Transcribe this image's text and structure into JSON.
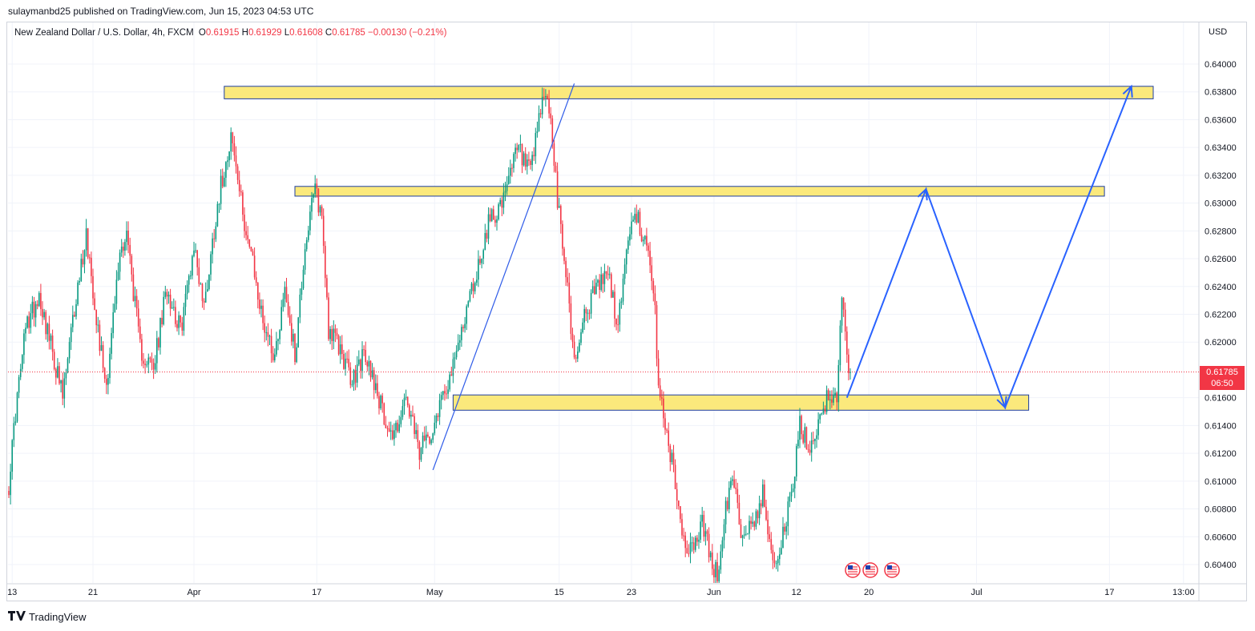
{
  "header": {
    "publish_line": "sulaymanbd25 published on TradingView.com, Jun 15, 2023 04:53 UTC"
  },
  "legend": {
    "symbol": "New Zealand Dollar / U.S. Dollar, 4h, FXCM",
    "open_label": "O",
    "open": "0.61915",
    "high_label": "H",
    "high": "0.61929",
    "low_label": "L",
    "low": "0.61608",
    "close_label": "C",
    "close": "0.61785",
    "change": "−0.00130 (−0.21%)"
  },
  "price_axis": {
    "currency": "USD"
  },
  "last_price": {
    "value": "0.61785",
    "countdown": "06:50"
  },
  "footer": {
    "logo_text": "TradingView"
  },
  "colors": {
    "up": "#089981",
    "down": "#f23645",
    "zone_fill": "#fbe97c",
    "zone_border": "#1f3ea0",
    "projection": "#2962ff",
    "trendline": "#2e5be8",
    "grid": "#f0f3fa"
  },
  "chart_data": {
    "type": "candlestick",
    "title": "New Zealand Dollar / U.S. Dollar, 4h, FXCM",
    "ylabel": "USD",
    "ylim": [
      0.6028,
      0.6415
    ],
    "y_ticks": [
      "0.64000",
      "0.63800",
      "0.63600",
      "0.63400",
      "0.63200",
      "0.63000",
      "0.62800",
      "0.62600",
      "0.62400",
      "0.62200",
      "0.62000",
      "0.61600",
      "0.61400",
      "0.61200",
      "0.61000",
      "0.60800",
      "0.60600",
      "0.60400"
    ],
    "x_ticks": [
      {
        "label": "13",
        "i": 2
      },
      {
        "label": "21",
        "i": 50
      },
      {
        "label": "Apr",
        "i": 110
      },
      {
        "label": "17",
        "i": 183
      },
      {
        "label": "May",
        "i": 253
      },
      {
        "label": "15",
        "i": 327
      },
      {
        "label": "23",
        "i": 370
      },
      {
        "label": "Jun",
        "i": 419
      },
      {
        "label": "12",
        "i": 468
      },
      {
        "label": "20",
        "i": 511
      },
      {
        "label": "Jul",
        "i": 575
      },
      {
        "label": "17",
        "i": 654
      },
      {
        "label": "13:00",
        "i": 698
      }
    ],
    "zones": [
      {
        "from_i": 128,
        "to_i": 680,
        "top": 0.6384,
        "bottom": 0.6375
      },
      {
        "from_i": 170,
        "to_i": 651,
        "top": 0.6312,
        "bottom": 0.6305
      },
      {
        "from_i": 264,
        "to_i": 606,
        "top": 0.6162,
        "bottom": 0.6151
      }
    ],
    "trendline": {
      "from": {
        "i": 252,
        "price": 0.6108
      },
      "to": {
        "i": 336,
        "price": 0.6386
      }
    },
    "projection": [
      {
        "i": 498,
        "price": 0.616
      },
      {
        "i": 545,
        "price": 0.631
      },
      {
        "i": 592,
        "price": 0.6153
      },
      {
        "i": 667,
        "price": 0.6384
      }
    ],
    "last_price": 0.61785,
    "last_index": 500,
    "anchors": [
      [
        0,
        0.6098
      ],
      [
        4,
        0.615
      ],
      [
        10,
        0.621
      ],
      [
        18,
        0.6235
      ],
      [
        26,
        0.6192
      ],
      [
        32,
        0.616
      ],
      [
        40,
        0.6232
      ],
      [
        46,
        0.6278
      ],
      [
        54,
        0.62
      ],
      [
        58,
        0.617
      ],
      [
        66,
        0.6264
      ],
      [
        70,
        0.628
      ],
      [
        78,
        0.6195
      ],
      [
        86,
        0.618
      ],
      [
        94,
        0.624
      ],
      [
        102,
        0.6208
      ],
      [
        110,
        0.627
      ],
      [
        116,
        0.6225
      ],
      [
        124,
        0.63
      ],
      [
        132,
        0.635
      ],
      [
        138,
        0.63
      ],
      [
        144,
        0.6262
      ],
      [
        150,
        0.622
      ],
      [
        158,
        0.619
      ],
      [
        164,
        0.624
      ],
      [
        170,
        0.619
      ],
      [
        176,
        0.627
      ],
      [
        182,
        0.631
      ],
      [
        186,
        0.629
      ],
      [
        190,
        0.621
      ],
      [
        198,
        0.6192
      ],
      [
        204,
        0.617
      ],
      [
        210,
        0.619
      ],
      [
        216,
        0.6178
      ],
      [
        222,
        0.615
      ],
      [
        228,
        0.6132
      ],
      [
        236,
        0.6158
      ],
      [
        244,
        0.612
      ],
      [
        252,
        0.614
      ],
      [
        258,
        0.6165
      ],
      [
        264,
        0.618
      ],
      [
        270,
        0.6215
      ],
      [
        278,
        0.625
      ],
      [
        286,
        0.629
      ],
      [
        294,
        0.63
      ],
      [
        302,
        0.634
      ],
      [
        310,
        0.632
      ],
      [
        318,
        0.638
      ],
      [
        322,
        0.636
      ],
      [
        326,
        0.63
      ],
      [
        332,
        0.624
      ],
      [
        336,
        0.6185
      ],
      [
        342,
        0.622
      ],
      [
        350,
        0.624
      ],
      [
        356,
        0.625
      ],
      [
        362,
        0.621
      ],
      [
        368,
        0.6278
      ],
      [
        374,
        0.629
      ],
      [
        380,
        0.626
      ],
      [
        384,
        0.622
      ],
      [
        386,
        0.617
      ],
      [
        390,
        0.614
      ],
      [
        396,
        0.61
      ],
      [
        400,
        0.606
      ],
      [
        406,
        0.605
      ],
      [
        412,
        0.607
      ],
      [
        418,
        0.604
      ],
      [
        422,
        0.6032
      ],
      [
        426,
        0.608
      ],
      [
        430,
        0.61
      ],
      [
        436,
        0.606
      ],
      [
        442,
        0.607
      ],
      [
        448,
        0.609
      ],
      [
        452,
        0.606
      ],
      [
        456,
        0.604
      ],
      [
        460,
        0.6062
      ],
      [
        466,
        0.6095
      ],
      [
        470,
        0.614
      ],
      [
        476,
        0.6122
      ],
      [
        482,
        0.6148
      ],
      [
        488,
        0.6165
      ],
      [
        492,
        0.6158
      ],
      [
        495,
        0.623
      ],
      [
        498,
        0.619
      ],
      [
        500,
        0.61785
      ]
    ]
  }
}
